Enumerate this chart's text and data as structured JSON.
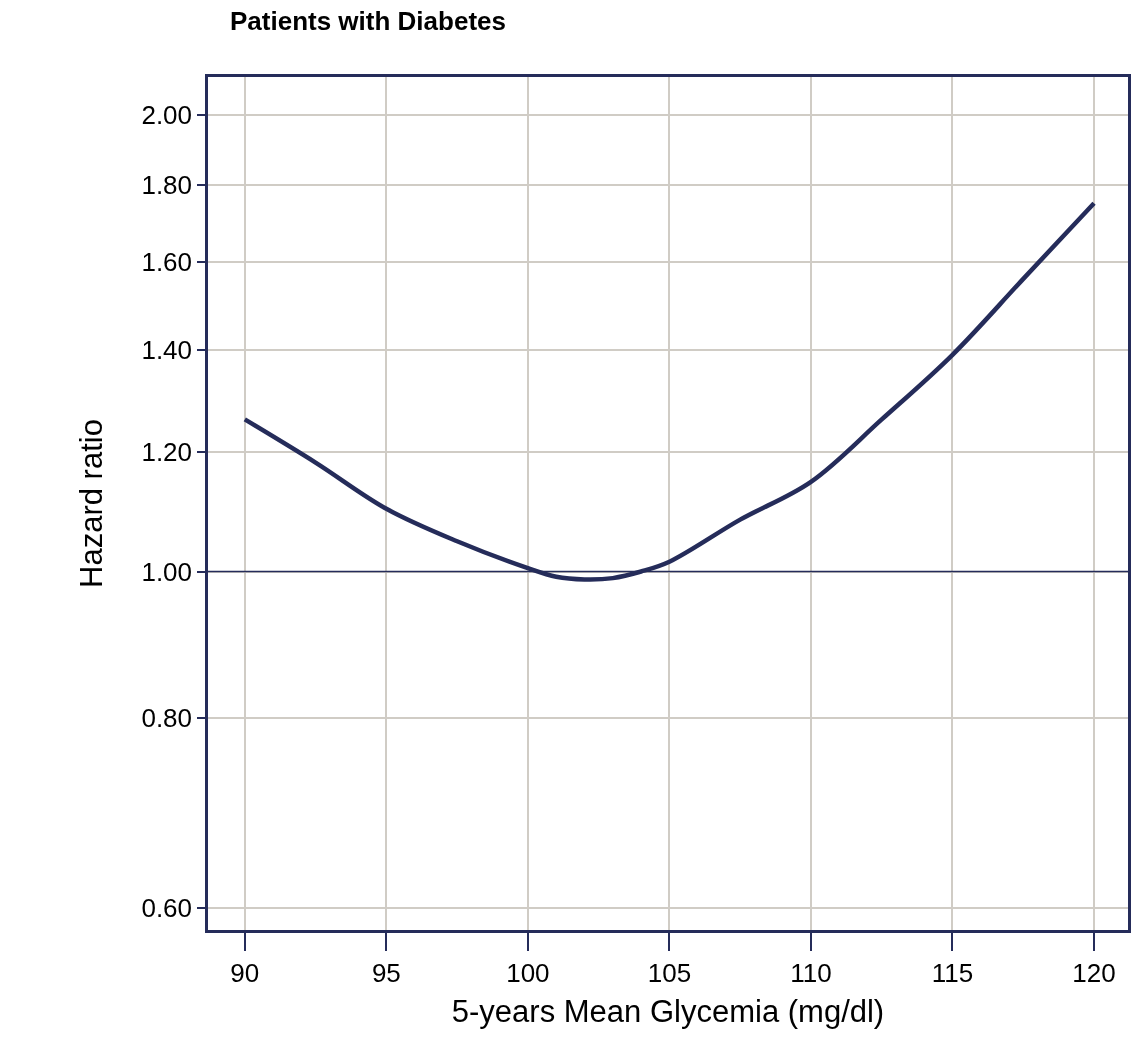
{
  "chart_data": {
    "type": "line",
    "title": "Patients with Diabetes",
    "xlabel": "5-years Mean Glycemia (mg/dl)",
    "ylabel": "Hazard ratio",
    "x": [
      90,
      92.5,
      95,
      97.5,
      100,
      101,
      102,
      103,
      104,
      105,
      107.5,
      110,
      112.5,
      115,
      117.5,
      120
    ],
    "series": [
      {
        "color": "#252c5a",
        "values": [
          1.26,
          1.18,
          1.1,
          1.047,
          1.005,
          0.992,
          0.988,
          0.99,
          1.0,
          1.015,
          1.082,
          1.146,
          1.26,
          1.39,
          1.56,
          1.75
        ]
      }
    ],
    "xlim": [
      88.7,
      121.2
    ],
    "xticks": [
      90,
      95,
      100,
      105,
      110,
      115,
      120
    ],
    "ylim": [
      0.58,
      2.12
    ],
    "yticks": [
      {
        "value": 0.6,
        "label": "0.60"
      },
      {
        "value": 0.8,
        "label": "0.80"
      },
      {
        "value": 1,
        "label": "1.00"
      },
      {
        "value": 1.2,
        "label": "1.20"
      },
      {
        "value": 1.4,
        "label": "1.40"
      },
      {
        "value": 1.6,
        "label": "1.60"
      },
      {
        "value": 1.8,
        "label": "1.80"
      },
      {
        "value": 2,
        "label": "2.00"
      }
    ],
    "log": "y",
    "grid": true,
    "marker": "none",
    "line_style": "solid",
    "ref_lines": [
      {
        "axis": "y",
        "value": 1,
        "color": "#252c5a"
      }
    ]
  }
}
